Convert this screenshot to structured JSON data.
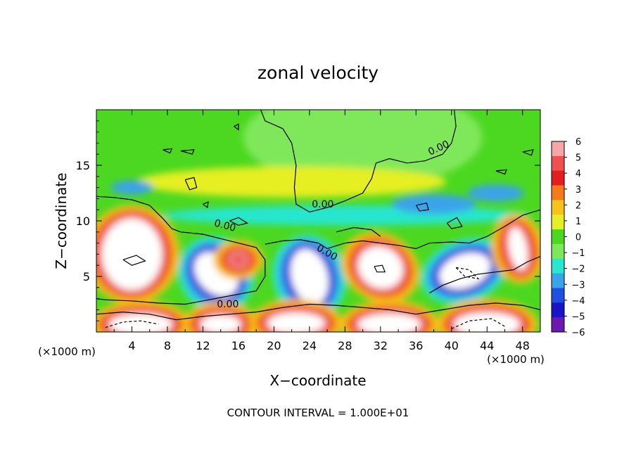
{
  "chart_data": {
    "type": "heatmap",
    "title": "zonal velocity",
    "xlabel": "X−coordinate",
    "ylabel": "Z−coordinate",
    "x_unit": "(×1000 m)",
    "y_unit": "(×1000 m)",
    "xlim": [
      0,
      50
    ],
    "ylim": [
      0,
      20
    ],
    "x_ticks": [
      4,
      8,
      12,
      16,
      20,
      24,
      28,
      32,
      36,
      40,
      44,
      48
    ],
    "y_ticks": [
      5,
      10,
      15
    ],
    "colorbar": {
      "ticks": [
        6,
        5,
        4,
        3,
        2,
        1,
        0,
        -1,
        -2,
        -3,
        -4,
        -5,
        -6
      ],
      "tick_labels": [
        "6",
        "5",
        "4",
        "3",
        "2",
        "1",
        "0",
        "−1",
        "−2",
        "−3",
        "−4",
        "−5",
        "−6"
      ],
      "colors": [
        "#f6a6a6",
        "#f05050",
        "#e41e1e",
        "#f57a1c",
        "#f5c31c",
        "#e6ef24",
        "#4cd820",
        "#7fe85a",
        "#28e6d0",
        "#3aa3ea",
        "#2050e0",
        "#1a14c8",
        "#6a1ab0"
      ]
    },
    "contour_labels": [
      "0.00",
      "0.00",
      "0.00",
      "0.00",
      "0.00",
      "0.00"
    ],
    "annotation": "CONTOUR INTERVAL = 1.000E+01"
  }
}
